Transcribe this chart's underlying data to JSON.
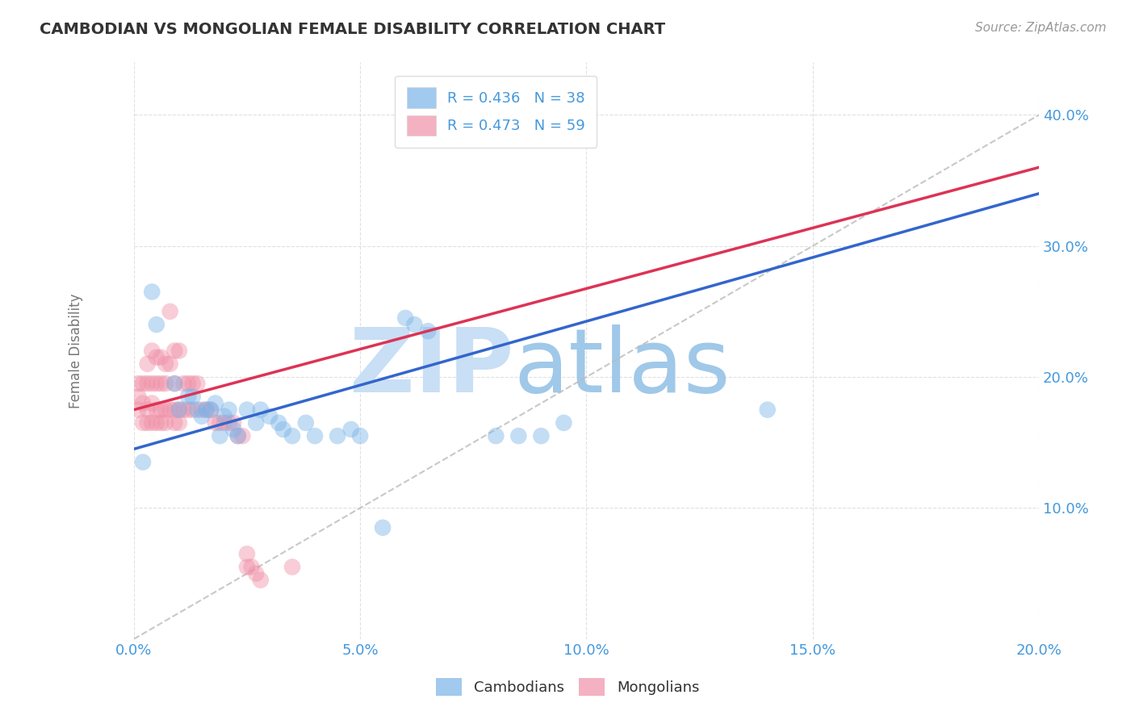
{
  "title": "CAMBODIAN VS MONGOLIAN FEMALE DISABILITY CORRELATION CHART",
  "source_text": "Source: ZipAtlas.com",
  "ylabel": "Female Disability",
  "legend_entries": [
    {
      "label": "R = 0.436   N = 38",
      "color": "#a8c8f0"
    },
    {
      "label": "R = 0.473   N = 59",
      "color": "#f0a8b8"
    }
  ],
  "legend_bottom": [
    "Cambodians",
    "Mongolians"
  ],
  "xlim": [
    0.0,
    0.2
  ],
  "ylim": [
    0.0,
    0.44
  ],
  "xticks": [
    0.0,
    0.05,
    0.1,
    0.15,
    0.2
  ],
  "yticks": [
    0.1,
    0.2,
    0.3,
    0.4
  ],
  "ytick_labels": [
    "10.0%",
    "20.0%",
    "30.0%",
    "40.0%"
  ],
  "xtick_labels": [
    "0.0%",
    "5.0%",
    "10.0%",
    "15.0%",
    "20.0%"
  ],
  "title_color": "#333333",
  "axis_color": "#4499dd",
  "grid_color": "#cccccc",
  "watermark_zip": "ZIP",
  "watermark_atlas": "atlas",
  "watermark_color_zip": "#c8dff5",
  "watermark_color_atlas": "#a0c8e8",
  "cambodian_color": "#7ab4e8",
  "mongolian_color": "#f090a8",
  "cambodian_line_color": "#3366cc",
  "mongolian_line_color": "#dd3355",
  "ref_line_color": "#bbbbbb",
  "cambodian_scatter": [
    [
      0.002,
      0.135
    ],
    [
      0.004,
      0.265
    ],
    [
      0.005,
      0.24
    ],
    [
      0.009,
      0.195
    ],
    [
      0.01,
      0.175
    ],
    [
      0.012,
      0.185
    ],
    [
      0.013,
      0.185
    ],
    [
      0.014,
      0.175
    ],
    [
      0.015,
      0.17
    ],
    [
      0.016,
      0.175
    ],
    [
      0.017,
      0.175
    ],
    [
      0.018,
      0.18
    ],
    [
      0.019,
      0.155
    ],
    [
      0.02,
      0.17
    ],
    [
      0.021,
      0.175
    ],
    [
      0.022,
      0.16
    ],
    [
      0.023,
      0.155
    ],
    [
      0.025,
      0.175
    ],
    [
      0.027,
      0.165
    ],
    [
      0.028,
      0.175
    ],
    [
      0.03,
      0.17
    ],
    [
      0.032,
      0.165
    ],
    [
      0.033,
      0.16
    ],
    [
      0.035,
      0.155
    ],
    [
      0.038,
      0.165
    ],
    [
      0.04,
      0.155
    ],
    [
      0.045,
      0.155
    ],
    [
      0.048,
      0.16
    ],
    [
      0.05,
      0.155
    ],
    [
      0.055,
      0.085
    ],
    [
      0.06,
      0.245
    ],
    [
      0.062,
      0.24
    ],
    [
      0.065,
      0.235
    ],
    [
      0.08,
      0.155
    ],
    [
      0.085,
      0.155
    ],
    [
      0.09,
      0.155
    ],
    [
      0.095,
      0.165
    ],
    [
      0.14,
      0.175
    ]
  ],
  "mongolian_scatter": [
    [
      0.001,
      0.195
    ],
    [
      0.001,
      0.185
    ],
    [
      0.001,
      0.175
    ],
    [
      0.002,
      0.195
    ],
    [
      0.002,
      0.18
    ],
    [
      0.002,
      0.165
    ],
    [
      0.003,
      0.21
    ],
    [
      0.003,
      0.195
    ],
    [
      0.003,
      0.175
    ],
    [
      0.003,
      0.165
    ],
    [
      0.004,
      0.22
    ],
    [
      0.004,
      0.195
    ],
    [
      0.004,
      0.18
    ],
    [
      0.004,
      0.165
    ],
    [
      0.005,
      0.215
    ],
    [
      0.005,
      0.195
    ],
    [
      0.005,
      0.175
    ],
    [
      0.005,
      0.165
    ],
    [
      0.006,
      0.215
    ],
    [
      0.006,
      0.195
    ],
    [
      0.006,
      0.175
    ],
    [
      0.006,
      0.165
    ],
    [
      0.007,
      0.21
    ],
    [
      0.007,
      0.195
    ],
    [
      0.007,
      0.175
    ],
    [
      0.007,
      0.165
    ],
    [
      0.008,
      0.25
    ],
    [
      0.008,
      0.21
    ],
    [
      0.008,
      0.175
    ],
    [
      0.009,
      0.22
    ],
    [
      0.009,
      0.195
    ],
    [
      0.009,
      0.175
    ],
    [
      0.009,
      0.165
    ],
    [
      0.01,
      0.22
    ],
    [
      0.01,
      0.175
    ],
    [
      0.01,
      0.165
    ],
    [
      0.011,
      0.195
    ],
    [
      0.011,
      0.175
    ],
    [
      0.012,
      0.195
    ],
    [
      0.012,
      0.175
    ],
    [
      0.013,
      0.195
    ],
    [
      0.013,
      0.175
    ],
    [
      0.014,
      0.195
    ],
    [
      0.015,
      0.175
    ],
    [
      0.016,
      0.175
    ],
    [
      0.017,
      0.175
    ],
    [
      0.018,
      0.165
    ],
    [
      0.019,
      0.165
    ],
    [
      0.02,
      0.165
    ],
    [
      0.021,
      0.165
    ],
    [
      0.022,
      0.165
    ],
    [
      0.023,
      0.155
    ],
    [
      0.024,
      0.155
    ],
    [
      0.025,
      0.065
    ],
    [
      0.025,
      0.055
    ],
    [
      0.026,
      0.055
    ],
    [
      0.027,
      0.05
    ],
    [
      0.028,
      0.045
    ],
    [
      0.035,
      0.055
    ]
  ],
  "cambodian_line": [
    [
      0.0,
      0.145
    ],
    [
      0.2,
      0.34
    ]
  ],
  "mongolian_line": [
    [
      0.0,
      0.175
    ],
    [
      0.2,
      0.36
    ]
  ],
  "ref_line": [
    [
      0.0,
      0.0
    ],
    [
      0.2,
      0.4
    ]
  ]
}
